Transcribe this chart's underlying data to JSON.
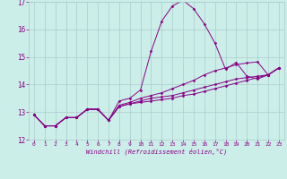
{
  "xlabel": "Windchill (Refroidissement éolien,°C)",
  "background_color": "#cceee8",
  "grid_color": "#aacccc",
  "line_color": "#880088",
  "xlim": [
    -0.5,
    23.5
  ],
  "ylim": [
    12,
    17
  ],
  "yticks": [
    12,
    13,
    14,
    15,
    16,
    17
  ],
  "xticks": [
    0,
    1,
    2,
    3,
    4,
    5,
    6,
    7,
    8,
    9,
    10,
    11,
    12,
    13,
    14,
    15,
    16,
    17,
    18,
    19,
    20,
    21,
    22,
    23
  ],
  "series_base_x": [
    0,
    1,
    2,
    3,
    4,
    5,
    6,
    7,
    8,
    9,
    10,
    11,
    12,
    13,
    14,
    15,
    16,
    17,
    18,
    19,
    20,
    21,
    22,
    23
  ],
  "series_base_y": [
    12.9,
    12.5,
    12.5,
    12.8,
    12.8,
    13.1,
    13.1,
    12.7,
    13.2,
    13.3,
    13.35,
    13.4,
    13.45,
    13.5,
    13.6,
    13.65,
    13.75,
    13.85,
    13.95,
    14.05,
    14.15,
    14.25,
    14.35,
    14.6
  ],
  "series_spike_x": [
    0,
    1,
    2,
    3,
    4,
    5,
    6,
    7,
    8,
    9,
    10,
    11,
    12,
    13,
    14,
    15,
    16,
    17,
    18,
    19,
    20,
    21,
    22,
    23
  ],
  "series_spike_y": [
    12.9,
    12.5,
    12.5,
    12.8,
    12.8,
    13.1,
    13.1,
    12.7,
    13.4,
    13.5,
    13.8,
    15.2,
    16.3,
    16.85,
    17.05,
    16.75,
    16.2,
    15.5,
    14.55,
    14.8,
    14.3,
    14.2,
    14.35,
    14.6
  ],
  "series_upper_x": [
    0,
    1,
    2,
    3,
    4,
    5,
    6,
    7,
    8,
    9,
    10,
    11,
    12,
    13,
    14,
    15,
    16,
    17,
    18,
    19,
    20,
    21,
    22,
    23
  ],
  "series_upper_y": [
    12.9,
    12.5,
    12.5,
    12.8,
    12.8,
    13.1,
    13.1,
    12.7,
    13.25,
    13.35,
    13.5,
    13.6,
    13.7,
    13.85,
    14.0,
    14.15,
    14.35,
    14.5,
    14.6,
    14.72,
    14.78,
    14.82,
    14.35,
    14.6
  ],
  "series_mid_x": [
    0,
    1,
    2,
    3,
    4,
    5,
    6,
    7,
    8,
    9,
    10,
    11,
    12,
    13,
    14,
    15,
    16,
    17,
    18,
    19,
    20,
    21,
    22,
    23
  ],
  "series_mid_y": [
    12.9,
    12.5,
    12.5,
    12.8,
    12.8,
    13.1,
    13.1,
    12.7,
    13.2,
    13.3,
    13.4,
    13.5,
    13.55,
    13.6,
    13.7,
    13.8,
    13.9,
    14.0,
    14.1,
    14.2,
    14.25,
    14.3,
    14.35,
    14.6
  ]
}
